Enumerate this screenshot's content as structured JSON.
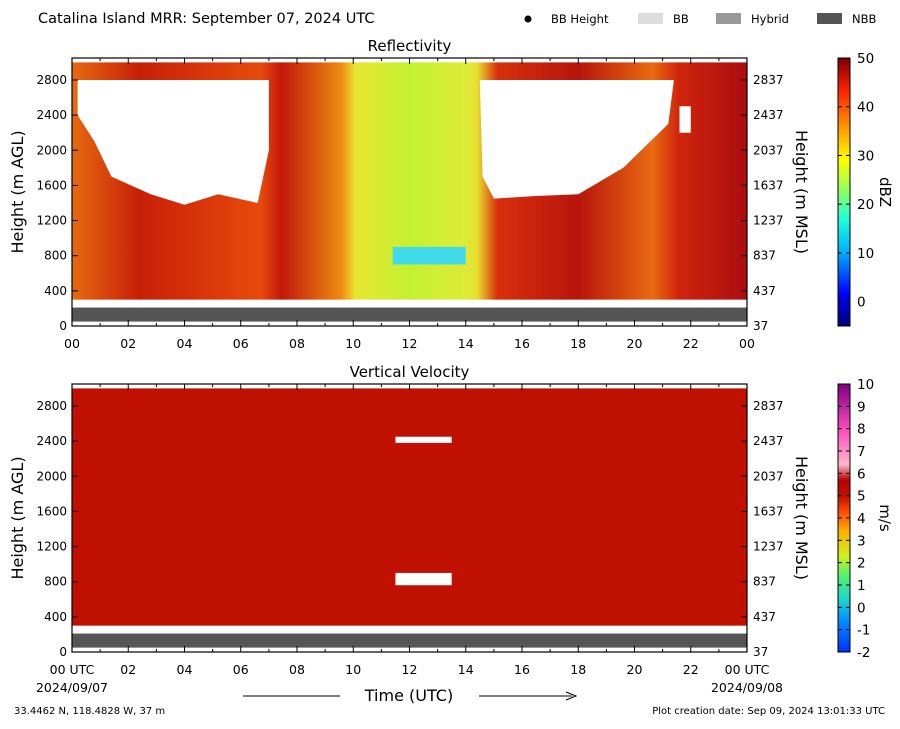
{
  "header": {
    "title": "Catalina Island MRR:  September 07, 2024 UTC",
    "legend": [
      {
        "label": "BB Height",
        "marker": "dot",
        "color": "#000000"
      },
      {
        "label": "BB",
        "marker": "box",
        "color": "#dddddd"
      },
      {
        "label": "Hybrid",
        "marker": "box",
        "color": "#999999"
      },
      {
        "label": "NBB",
        "marker": "box",
        "color": "#555555"
      }
    ]
  },
  "chart_data": [
    {
      "type": "heatmap",
      "title": "Reflectivity",
      "ylabel": "Height (m AGL)",
      "ylabel_right": "Height (m MSL)",
      "x_ticks": [
        "00",
        "02",
        "04",
        "06",
        "08",
        "10",
        "12",
        "14",
        "16",
        "18",
        "20",
        "22",
        "00"
      ],
      "xlim": [
        0,
        24
      ],
      "ylim": [
        0,
        3050
      ],
      "y_ticks": [
        0,
        400,
        800,
        1200,
        1600,
        2000,
        2400,
        2800
      ],
      "y_ticks_right": [
        37,
        437,
        837,
        1237,
        1637,
        2037,
        2437,
        2837
      ],
      "colorbar": {
        "label": "dBZ",
        "range": [
          -5,
          50
        ],
        "ticks": [
          "0",
          "10",
          "20",
          "30",
          "40",
          "50"
        ]
      },
      "bright_band_type_strip": {
        "category": "NBB",
        "height_range": [
          50,
          210
        ]
      },
      "dominant_values": [
        {
          "hours": [
            0,
            7.2
          ],
          "height_range": [
            300,
            1500
          ],
          "dbz": 40
        },
        {
          "hours": [
            7.2,
            9.5
          ],
          "height_range": [
            300,
            3000
          ],
          "dbz": 42
        },
        {
          "hours": [
            9.5,
            14.3
          ],
          "height_range": [
            300,
            3000
          ],
          "dbz": 20
        },
        {
          "hours": [
            14.5,
            21.5
          ],
          "height_range": [
            300,
            1400
          ],
          "dbz": 42
        },
        {
          "hours": [
            21.5,
            24
          ],
          "height_range": [
            300,
            3000
          ],
          "dbz": 44
        }
      ]
    },
    {
      "type": "heatmap",
      "title": "Vertical Velocity",
      "ylabel": "Height (m AGL)",
      "ylabel_right": "Height (m MSL)",
      "xlabel": "Time (UTC)",
      "x_ticks": [
        "00 UTC",
        "02",
        "04",
        "06",
        "08",
        "10",
        "12",
        "14",
        "16",
        "18",
        "20",
        "22",
        "00 UTC"
      ],
      "x_dates": [
        "2024/09/07",
        "2024/09/08"
      ],
      "xlim": [
        0,
        24
      ],
      "ylim": [
        0,
        3050
      ],
      "y_ticks": [
        0,
        400,
        800,
        1200,
        1600,
        2000,
        2400,
        2800
      ],
      "y_ticks_right": [
        37,
        437,
        837,
        1237,
        1637,
        2037,
        2437,
        2837
      ],
      "colorbar": {
        "label": "m/s",
        "range": [
          -2,
          10
        ],
        "ticks": [
          "-2",
          "-1",
          "0",
          "1",
          "2",
          "3",
          "4",
          "5",
          "6",
          "7",
          "8",
          "9",
          "10"
        ]
      },
      "bright_band_type_strip": {
        "category": "NBB",
        "height_range": [
          50,
          210
        ]
      },
      "dominant_value_ms": 6
    }
  ],
  "footer": {
    "location": "33.4462 N, 118.4828 W, 37 m",
    "creation": "Plot creation date: Sep 09, 2024 13:01:33 UTC"
  }
}
